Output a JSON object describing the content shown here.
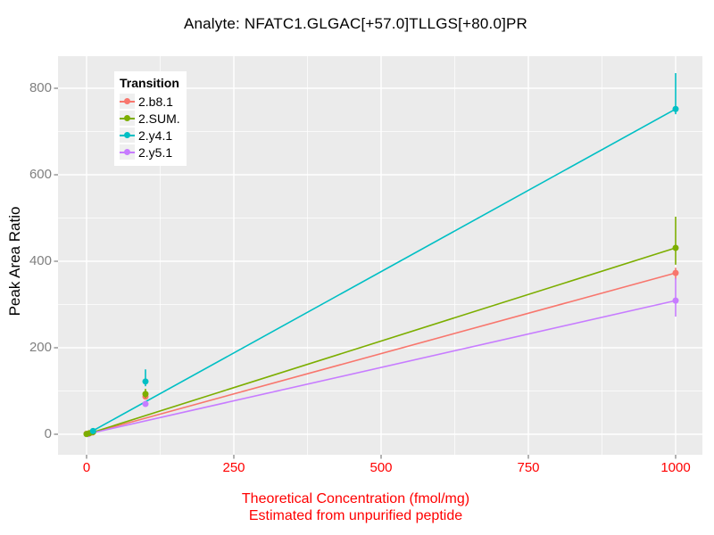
{
  "title": "Analyte: NFATC1.GLGAC[+57.0]TLLGS[+80.0]PR",
  "colors": {
    "panel_bg": "#EBEBEB",
    "grid_major": "#FFFFFF",
    "grid_minor": "#FFFFFF",
    "tick_mark": "#7F7F7F",
    "x_tick_label": "#FF0000",
    "y_tick_label": "#7F7F7F",
    "x_axis_title": "#FF0000",
    "y_axis_title": "#000000",
    "title": "#000000"
  },
  "chart_data": {
    "type": "line",
    "title": "Analyte: NFATC1.GLGAC[+57.0]TLLGS[+80.0]PR",
    "xlabel_line1": "Theoretical Concentration (fmol/mg)",
    "xlabel_line2": "Estimated from unpurified peptide",
    "ylabel": "Peak Area Ratio",
    "legend_title": "Transition",
    "legend_position": "top-left-inside",
    "grid": {
      "major": true,
      "minor": true
    },
    "x_ticks": [
      0,
      250,
      500,
      750,
      1000
    ],
    "y_ticks": [
      0,
      200,
      400,
      600,
      800
    ],
    "xlim": [
      -48,
      1045
    ],
    "ylim": [
      -47,
      875
    ],
    "series": [
      {
        "name": "2.b8.1",
        "color": "#F8766D",
        "line": {
          "x": [
            0,
            1000
          ],
          "y": [
            0,
            373
          ]
        },
        "points": [
          {
            "x": 0,
            "y": 1
          },
          {
            "x": 4,
            "y": 1.5
          },
          {
            "x": 10,
            "y": 4
          },
          {
            "x": 100,
            "y": 87,
            "ymin": 82,
            "ymax": 92
          },
          {
            "x": 1000,
            "y": 373,
            "ymin": 358,
            "ymax": 385
          }
        ]
      },
      {
        "name": "2.SUM.",
        "color": "#7CAE00",
        "line": {
          "x": [
            0,
            1000
          ],
          "y": [
            0,
            431
          ]
        },
        "points": [
          {
            "x": 0,
            "y": 0.5
          },
          {
            "x": 5,
            "y": 2.5
          },
          {
            "x": 11,
            "y": 5
          },
          {
            "x": 100,
            "y": 93,
            "ymin": 84,
            "ymax": 105
          },
          {
            "x": 1000,
            "y": 431,
            "ymin": 392,
            "ymax": 503
          }
        ]
      },
      {
        "name": "2.y4.1",
        "color": "#00BFC4",
        "line": {
          "x": [
            0,
            1000
          ],
          "y": [
            0,
            752
          ]
        },
        "points": [
          {
            "x": 11,
            "y": 7.5
          },
          {
            "x": 100,
            "y": 122,
            "ymin": 111,
            "ymax": 150
          },
          {
            "x": 1000,
            "y": 752,
            "ymin": 740,
            "ymax": 835
          }
        ]
      },
      {
        "name": "2.y5.1",
        "color": "#C77CFF",
        "line": {
          "x": [
            0,
            1000
          ],
          "y": [
            0,
            309
          ]
        },
        "points": [
          {
            "x": 3,
            "y": 0.5
          },
          {
            "x": 100,
            "y": 70,
            "ymin": 64,
            "ymax": 76
          },
          {
            "x": 1000,
            "y": 309,
            "ymin": 272,
            "ymax": 361
          }
        ]
      }
    ]
  }
}
